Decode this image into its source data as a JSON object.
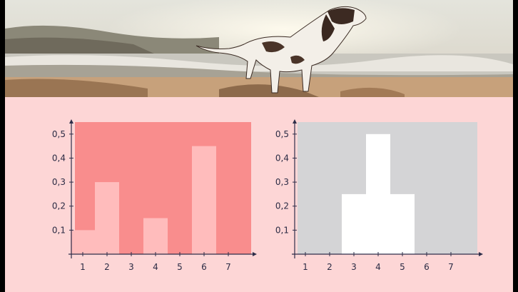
{
  "hero": {
    "description_icon": "dog-on-beach-photo"
  },
  "colors": {
    "page_bg": "#fdd6d6",
    "left_plot_bg": "#f98d8d",
    "left_bar": "#ffbcbc",
    "right_plot_bg": "#d4d4d6",
    "right_bar": "#ffffff",
    "axis": "#2e2e4a"
  },
  "chart_data": [
    {
      "type": "bar",
      "categories": [
        "1",
        "2",
        "3",
        "4",
        "5",
        "6",
        "7"
      ],
      "values": [
        0.1,
        0.3,
        0,
        0.15,
        0,
        0.45,
        0
      ],
      "ylim": [
        0,
        0.55
      ],
      "yticks": [
        "0,1",
        "0,2",
        "0,3",
        "0,4",
        "0,5"
      ],
      "xticks": [
        "1",
        "2",
        "3",
        "4",
        "5",
        "6",
        "7"
      ],
      "title": "",
      "xlabel": "",
      "ylabel": ""
    },
    {
      "type": "bar",
      "categories": [
        "1",
        "2",
        "3",
        "4",
        "5",
        "6",
        "7"
      ],
      "values": [
        0,
        0,
        0.25,
        0.5,
        0.25,
        0,
        0
      ],
      "x_offset_bins": 0.5,
      "ylim": [
        0,
        0.55
      ],
      "yticks": [
        "0,1",
        "0,2",
        "0,3",
        "0,4",
        "0,5"
      ],
      "xticks": [
        "1",
        "2",
        "3",
        "4",
        "5",
        "6",
        "7"
      ],
      "title": "",
      "xlabel": "",
      "ylabel": ""
    }
  ]
}
